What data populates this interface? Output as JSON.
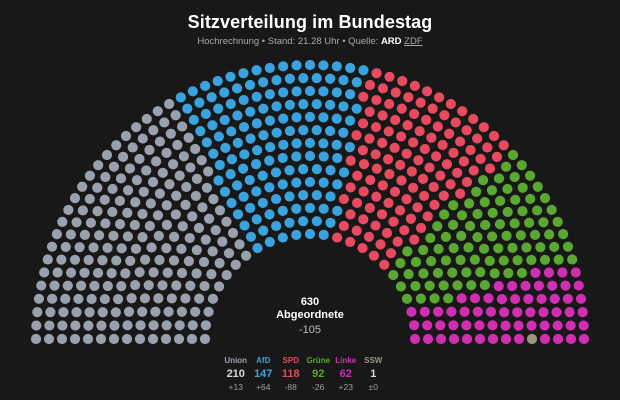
{
  "title": "Sitzverteilung im Bundestag",
  "subtitle": {
    "prefix": "Hochrechnung • Stand: 21.28 Uhr • Quelle:",
    "source_bold": "ARD",
    "source_link": "ZDF"
  },
  "center": {
    "seats": "630",
    "label": "Abgeordnete",
    "change": "-105"
  },
  "chart_data": {
    "type": "parliament",
    "title": "Sitzverteilung im Bundestag",
    "total": 630,
    "series": [
      {
        "name": "Union",
        "seats": 210,
        "change": "+13",
        "color": "#9aa1ae"
      },
      {
        "name": "AfD",
        "seats": 147,
        "change": "+64",
        "color": "#3aa3dd"
      },
      {
        "name": "SPD",
        "seats": 118,
        "change": "-88",
        "color": "#e84a5f"
      },
      {
        "name": "Grüne",
        "seats": 92,
        "change": "-26",
        "color": "#5aa832"
      },
      {
        "name": "Linke",
        "seats": 62,
        "change": "+23",
        "color": "#d02fb2"
      },
      {
        "name": "SSW",
        "seats": 1,
        "change": "±0",
        "color": "#9b9580"
      }
    ]
  }
}
